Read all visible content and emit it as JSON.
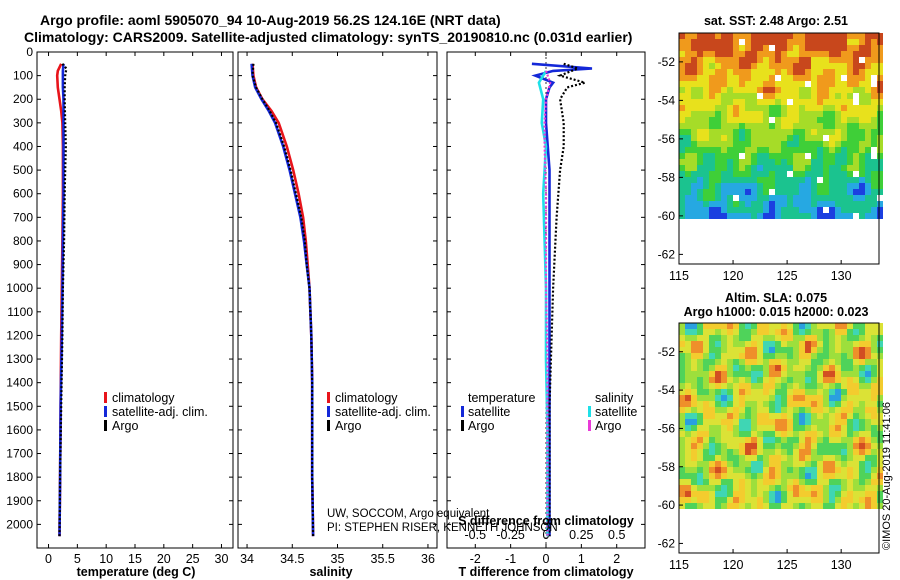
{
  "header": {
    "line1": "Argo profile: aoml 5905070_94 10-Aug-2019 56.2S 124.16E (NRT data)",
    "line2": "Climatology: CARS2009. Satellite-adjusted climatology: synTS_20190810.nc (0.031d earlier)"
  },
  "credit": {
    "line1": "UW, SOCCOM, Argo equivalent",
    "line2": "PI: STEPHEN RISER, KENNETH JOHNSON"
  },
  "side_stamp": "©IMOS 20-Aug-2019 11:41:06",
  "colors": {
    "climatology": "#e8141b",
    "satellite": "#1428d8",
    "argo": "#000000",
    "argo_salinity_diff": "#e93ad8",
    "satellite_salinity_diff": "#1ee0e8"
  },
  "chart_data": [
    {
      "type": "line",
      "id": "temperature",
      "xlabel": "temperature (deg C)",
      "ylabel": "",
      "xlim": [
        -2,
        32
      ],
      "ylim": [
        2100,
        0
      ],
      "xticks": [
        "0",
        "5",
        "10",
        "15",
        "20",
        "25",
        "30"
      ],
      "xtick_values": [
        0,
        5,
        10,
        15,
        20,
        25,
        30
      ],
      "yticks": [
        "0",
        "100",
        "200",
        "300",
        "400",
        "500",
        "600",
        "700",
        "800",
        "900",
        "1000",
        "1100",
        "1200",
        "1300",
        "1400",
        "1500",
        "1600",
        "1700",
        "1800",
        "1900",
        "2000"
      ],
      "ytick_values": [
        0,
        100,
        200,
        300,
        400,
        500,
        600,
        700,
        800,
        900,
        1000,
        1100,
        1200,
        1300,
        1400,
        1500,
        1600,
        1700,
        1800,
        1900,
        2000
      ],
      "series": [
        {
          "name": "climatology",
          "depth": [
            50,
            80,
            100,
            150,
            200,
            250,
            300,
            400,
            600,
            800,
            1000,
            1200,
            1500,
            1800,
            2050
          ],
          "values": [
            2.2,
            1.6,
            1.5,
            1.6,
            1.9,
            2.2,
            2.4,
            2.5,
            2.5,
            2.4,
            2.3,
            2.2,
            2.1,
            2.0,
            1.9
          ]
        },
        {
          "name": "satellite-adj. clim.",
          "depth": [
            50,
            80,
            100,
            150,
            200,
            250,
            300,
            400,
            600,
            800,
            1000,
            1200,
            1500,
            1800,
            2050
          ],
          "values": [
            2.6,
            2.5,
            2.5,
            2.5,
            2.6,
            2.6,
            2.6,
            2.6,
            2.6,
            2.5,
            2.4,
            2.3,
            2.1,
            2.0,
            1.9
          ]
        },
        {
          "name": "Argo",
          "depth": [
            50,
            70,
            100,
            150,
            200,
            300,
            400,
            500,
            600,
            800,
            1000,
            1200,
            1500,
            1800,
            2050
          ],
          "values": [
            2.4,
            3.1,
            2.9,
            2.8,
            2.8,
            2.9,
            3.0,
            2.9,
            2.8,
            2.7,
            2.5,
            2.4,
            2.2,
            2.0,
            1.9
          ]
        }
      ],
      "legend": [
        "climatology",
        "satellite-adj. clim.",
        "Argo"
      ]
    },
    {
      "type": "line",
      "id": "salinity",
      "xlabel": "salinity",
      "xlim": [
        33.9,
        36.1
      ],
      "ylim": [
        2100,
        0
      ],
      "xticks": [
        "34",
        "34.5",
        "35",
        "35.5",
        "36"
      ],
      "xtick_values": [
        34,
        34.5,
        35,
        35.5,
        36
      ],
      "series": [
        {
          "name": "climatology",
          "depth": [
            50,
            100,
            150,
            200,
            250,
            300,
            400,
            500,
            600,
            700,
            800,
            900,
            1000,
            1100,
            1200,
            1400,
            1600,
            1800,
            2050
          ],
          "values": [
            34.06,
            34.07,
            34.1,
            34.17,
            34.27,
            34.35,
            34.44,
            34.51,
            34.57,
            34.62,
            34.65,
            34.67,
            34.69,
            34.7,
            34.71,
            34.72,
            34.72,
            34.72,
            34.73
          ]
        },
        {
          "name": "satellite-adj. clim.",
          "depth": [
            50,
            100,
            150,
            200,
            250,
            300,
            400,
            500,
            600,
            700,
            800,
            900,
            1000,
            1100,
            1200,
            1400,
            1600,
            1800,
            2050
          ],
          "values": [
            34.05,
            34.06,
            34.09,
            34.16,
            34.24,
            34.31,
            34.4,
            34.47,
            34.53,
            34.59,
            34.63,
            34.66,
            34.69,
            34.7,
            34.71,
            34.72,
            34.72,
            34.72,
            34.73
          ]
        },
        {
          "name": "Argo",
          "depth": [
            50,
            100,
            150,
            200,
            250,
            300,
            400,
            500,
            600,
            700,
            800,
            900,
            1000,
            1100,
            1200,
            1400,
            1600,
            1800,
            2050
          ],
          "values": [
            34.07,
            34.06,
            34.1,
            34.17,
            34.25,
            34.32,
            34.41,
            34.48,
            34.54,
            34.6,
            34.64,
            34.66,
            34.69,
            34.7,
            34.71,
            34.72,
            34.72,
            34.72,
            34.73
          ]
        }
      ],
      "legend": [
        "climatology",
        "satellite-adj. clim.",
        "Argo"
      ]
    },
    {
      "type": "line",
      "id": "difference",
      "xlabel": "T difference from climatology",
      "top_xlabel": "S difference from climatology",
      "xlim": [
        -2.8,
        2.8
      ],
      "ylim": [
        2100,
        0
      ],
      "xticks": [
        "-2",
        "-1",
        "0",
        "1",
        "2"
      ],
      "xtick_values": [
        -2,
        -1,
        0,
        1,
        2
      ],
      "top_xticks": [
        "-0.5",
        "-0.25",
        "0",
        "0.25",
        "0.5"
      ],
      "top_xtick_values": [
        -0.5,
        -0.25,
        0,
        0.25,
        0.5
      ],
      "series": [
        {
          "name": "temperature satellite",
          "depth": [
            50,
            70,
            80,
            100,
            130,
            150,
            200,
            300,
            500,
            700,
            1000,
            1500,
            2050
          ],
          "values": [
            -0.4,
            1.3,
            0.2,
            -0.3,
            0.2,
            0.1,
            0.0,
            0.0,
            0.1,
            0.1,
            0.1,
            0.1,
            0.1
          ]
        },
        {
          "name": "temperature Argo",
          "depth": [
            50,
            70,
            100,
            130,
            150,
            200,
            300,
            400,
            500,
            700,
            1000,
            1500,
            2050
          ],
          "values": [
            0.5,
            0.9,
            0.4,
            1.1,
            0.6,
            0.4,
            0.5,
            0.5,
            0.4,
            0.3,
            0.2,
            0.1,
            0.1
          ]
        },
        {
          "name": "salinity satellite",
          "depth": [
            80,
            130,
            200,
            300,
            400,
            600,
            800,
            1000,
            1300,
            1600,
            2050
          ],
          "values": [
            0.0,
            -0.05,
            -0.02,
            -0.03,
            0.0,
            -0.02,
            -0.01,
            0.0,
            0.0,
            0.01,
            0.01
          ]
        },
        {
          "name": "salinity Argo",
          "depth": [
            80,
            130,
            200,
            300,
            400,
            600,
            800,
            1000,
            1300,
            1600,
            2050
          ],
          "values": [
            0.0,
            0.03,
            0.0,
            -0.01,
            -0.01,
            0.0,
            0.0,
            0.0,
            0.01,
            0.01,
            0.01
          ]
        }
      ],
      "legend_temperature": {
        "title": "temperature",
        "items": [
          "satellite",
          "Argo"
        ]
      },
      "legend_salinity": {
        "title": "salinity",
        "items": [
          "satellite",
          "Argo"
        ]
      }
    },
    {
      "type": "heatmap",
      "id": "sst_map",
      "title": "sat. SST: 2.48 Argo: 2.51",
      "xticks": [
        "115",
        "120",
        "125",
        "130"
      ],
      "xtick_values": [
        115,
        120,
        125,
        130
      ],
      "yticks": [
        "-52",
        "-54",
        "-56",
        "-58",
        "-60",
        "-62"
      ],
      "ytick_values": [
        -52,
        -54,
        -56,
        -58,
        -60,
        -62
      ],
      "xlim": [
        115,
        133.5
      ],
      "ylim": [
        -62.5,
        -50.5
      ],
      "data_lat_min": -60,
      "palette": [
        "#1b3fe0",
        "#26a8e2",
        "#1bc38f",
        "#3fcf38",
        "#a6dc28",
        "#e8e11c",
        "#f09a1c",
        "#c8471c"
      ]
    },
    {
      "type": "heatmap",
      "id": "sla_map",
      "title": "Altim. SLA: 0.075",
      "subtitle": "Argo h1000: 0.015 h2000: 0.023",
      "xticks": [
        "115",
        "120",
        "125",
        "130"
      ],
      "xtick_values": [
        115,
        120,
        125,
        130
      ],
      "yticks": [
        "-52",
        "-54",
        "-56",
        "-58",
        "-60",
        "-62"
      ],
      "ytick_values": [
        -52,
        -54,
        -56,
        -58,
        -60,
        -62
      ],
      "xlim": [
        115,
        133.5
      ],
      "ylim": [
        -62.5,
        -50.5
      ],
      "data_lat_min": -60,
      "palette": [
        "#2a9fe0",
        "#3fd6b4",
        "#4fd35a",
        "#9ddf3c",
        "#dbe236",
        "#f3cc2e",
        "#ef8f2a",
        "#d24e22"
      ]
    }
  ]
}
